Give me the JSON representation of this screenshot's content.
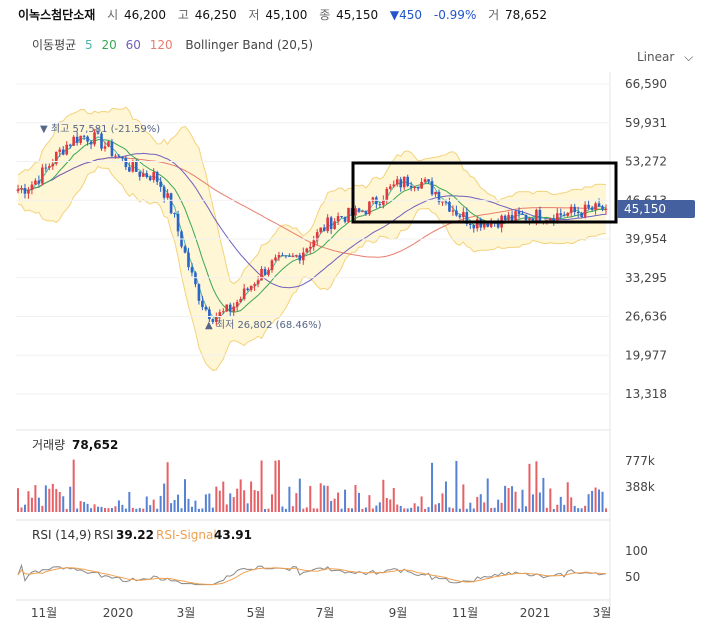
{
  "header": {
    "name": "이녹스첨단소재",
    "open_label": "시",
    "open": "46,200",
    "high_label": "고",
    "high": "46,250",
    "low_label": "저",
    "low": "45,100",
    "close_label": "종",
    "close": "45,150",
    "change": "▼450",
    "change_pct": "-0.99%",
    "volume_label": "거",
    "volume": "78,652"
  },
  "indicators": {
    "ma_label": "이동평균",
    "ma5": "5",
    "ma20": "20",
    "ma60": "60",
    "ma120": "120",
    "bb": "Bollinger Band (20,5)",
    "scale_label": "Linear"
  },
  "colors": {
    "up": "#e0383e",
    "down": "#2c63c8",
    "ma5": "#4db6ac",
    "ma20": "#3aa655",
    "ma60": "#7060c0",
    "ma120": "#e87d6e",
    "bb_fill": "#fff6d5",
    "bb_line": "#f3d27a",
    "price_tag": "#44609e",
    "rsi": "#888888",
    "rsi_signal": "#f0a050"
  },
  "annotations": {
    "high": "▼ 최고 57,581 (-21.59%)",
    "low": "▲ 최저 26,802 (68.46%)"
  },
  "price_tag": "45,150",
  "volume_panel": {
    "title": "거래량",
    "value": "78,652",
    "ticks": [
      "777k",
      "388k"
    ]
  },
  "rsi_panel": {
    "title": "RSI (14,9)",
    "rsi_label": "RSI",
    "rsi_value": "39.22",
    "signal_label": "RSI-Signal",
    "signal_value": "43.91",
    "ticks": [
      "100",
      "50"
    ]
  },
  "chart_data": {
    "type": "candlestick",
    "y_ticks": [
      "66,590",
      "59,931",
      "53,272",
      "46,613",
      "39,954",
      "33,295",
      "26,636",
      "19,977",
      "13,318"
    ],
    "ylim": [
      13318,
      66590
    ],
    "x_ticks": [
      "11월",
      "2020",
      "3월",
      "5월",
      "7월",
      "9월",
      "11월",
      "2021",
      "3월"
    ],
    "close_key_points": [
      {
        "x": "start",
        "y": 48500
      },
      {
        "x": "11월 before",
        "y": 57581
      },
      {
        "x": "2020",
        "y": 51000
      },
      {
        "x": "3월",
        "y": 26802
      },
      {
        "x": "5월",
        "y": 36000
      },
      {
        "x": "7월",
        "y": 44000
      },
      {
        "x": "9월",
        "y": 50000
      },
      {
        "x": "11월",
        "y": 43000
      },
      {
        "x": "2021",
        "y": 44000
      },
      {
        "x": "3월",
        "y": 45150
      }
    ],
    "last_close": 45150,
    "highlight_box": true
  }
}
